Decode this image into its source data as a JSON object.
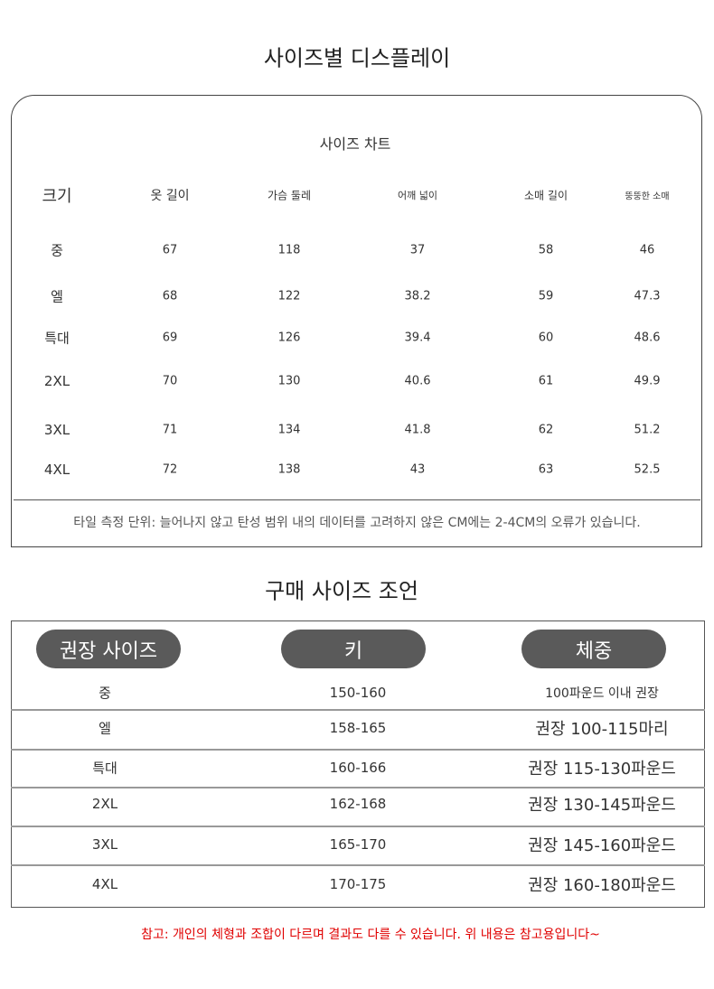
{
  "display_title": "사이즈별 디스플레이",
  "size_chart": {
    "title": "사이즈 차트",
    "headers": [
      "크기",
      "옷 길이",
      "가슴 둘레",
      "어깨 넓이",
      "소매 길이",
      "뚱뚱한 소매"
    ],
    "rows": [
      [
        "중",
        "67",
        "118",
        "37",
        "58",
        "46"
      ],
      [
        "엘",
        "68",
        "122",
        "38.2",
        "59",
        "47.3"
      ],
      [
        "특대",
        "69",
        "126",
        "39.4",
        "60",
        "48.6"
      ],
      [
        "2XL",
        "70",
        "130",
        "40.6",
        "61",
        "49.9"
      ],
      [
        "3XL",
        "71",
        "134",
        "41.8",
        "62",
        "51.2"
      ],
      [
        "4XL",
        "72",
        "138",
        "43",
        "63",
        "52.5"
      ]
    ],
    "footnote": "타일 측정 단위: 늘어나지 않고 탄성 범위 내의 데이터를 고려하지 않은 CM에는 2-4CM의 오류가 있습니다."
  },
  "advice_title": "구매 사이즈 조언",
  "advice": {
    "headers": [
      "권장 사이즈",
      "키",
      "체중"
    ],
    "rows": [
      [
        "중",
        "150-160",
        "100파운드 이내 권장"
      ],
      [
        "엘",
        "158-165",
        "권장 100-115마리"
      ],
      [
        "특대",
        "160-166",
        "권장 115-130파운드"
      ],
      [
        "2XL",
        "162-168",
        "권장 130-145파운드"
      ],
      [
        "3XL",
        "165-170",
        "권장 145-160파운드"
      ],
      [
        "4XL",
        "170-175",
        "권장 160-180파운드"
      ]
    ]
  },
  "note": "참고: 개인의 체형과 조합이 다르며 결과도 다를 수 있습니다. 위 내용은 참고용입니다~"
}
